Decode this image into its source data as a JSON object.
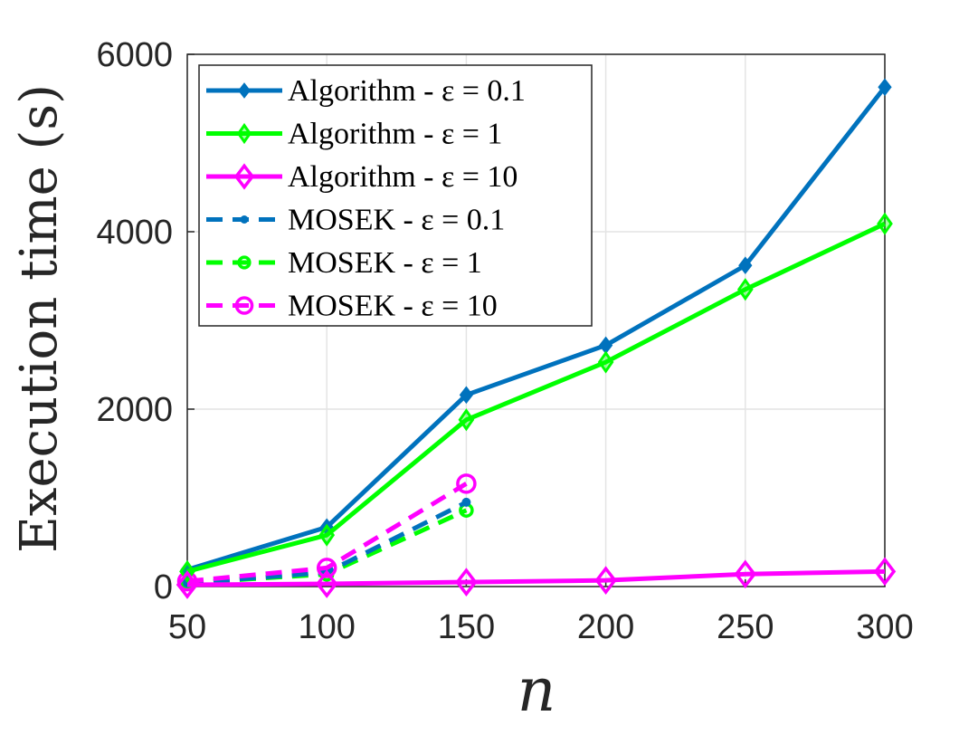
{
  "chart_data": {
    "type": "line",
    "xlabel": "n",
    "ylabel": "Execution time (s)",
    "xlim": [
      50,
      300
    ],
    "ylim": [
      0,
      6000
    ],
    "xticks": [
      "50",
      "100",
      "150",
      "200",
      "250",
      "300"
    ],
    "yticks": [
      "0",
      "2000",
      "4000",
      "6000"
    ],
    "grid": true,
    "legend_position": "top-left",
    "series": [
      {
        "name": "Algorithm - ε = 0.1",
        "color": "#0072BD",
        "style": "solid",
        "marker": "filled-diamond",
        "x": [
          50,
          100,
          150,
          200,
          250,
          300
        ],
        "y": [
          190,
          670,
          2160,
          2720,
          3620,
          5630
        ]
      },
      {
        "name": "Algorithm - ε = 1",
        "color": "#00FF00",
        "style": "solid",
        "marker": "diamond",
        "x": [
          50,
          100,
          150,
          200,
          250,
          300
        ],
        "y": [
          170,
          580,
          1880,
          2530,
          3350,
          4090
        ]
      },
      {
        "name": "Algorithm - ε = 10",
        "color": "#FF00FF",
        "style": "solid",
        "marker": "open-diamond",
        "x": [
          50,
          100,
          150,
          200,
          250,
          300
        ],
        "y": [
          20,
          30,
          50,
          70,
          140,
          170
        ]
      },
      {
        "name": "MOSEK - ε = 0.1",
        "color": "#0072BD",
        "style": "dashed",
        "marker": "dot",
        "x": [
          50,
          100,
          150
        ],
        "y": [
          40,
          160,
          950
        ]
      },
      {
        "name": "MOSEK - ε = 1",
        "color": "#00FF00",
        "style": "dashed",
        "marker": "circle",
        "x": [
          50,
          100,
          150
        ],
        "y": [
          40,
          140,
          860
        ]
      },
      {
        "name": "MOSEK - ε = 10",
        "color": "#FF00FF",
        "style": "dashed",
        "marker": "open-circle",
        "x": [
          50,
          100,
          150
        ],
        "y": [
          60,
          210,
          1160
        ]
      }
    ]
  }
}
